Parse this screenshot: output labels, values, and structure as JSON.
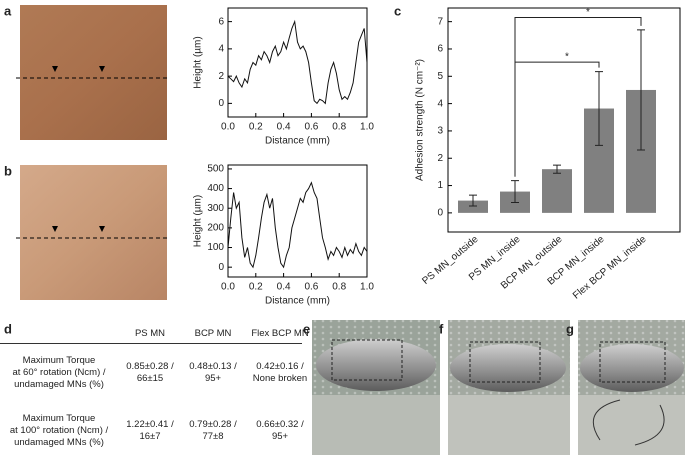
{
  "panels": [
    "a",
    "b",
    "c",
    "d",
    "e",
    "f",
    "g"
  ],
  "chart_data": [
    {
      "type": "line",
      "xlabel": "Distance (mm)",
      "ylabel": "Height (µm)",
      "color": "#111",
      "x": [
        0,
        0.02,
        0.04,
        0.06,
        0.08,
        0.1,
        0.12,
        0.14,
        0.16,
        0.18,
        0.2,
        0.22,
        0.24,
        0.26,
        0.28,
        0.3,
        0.32,
        0.34,
        0.36,
        0.38,
        0.4,
        0.42,
        0.44,
        0.46,
        0.48,
        0.5,
        0.52,
        0.54,
        0.56,
        0.58,
        0.6,
        0.62,
        0.64,
        0.66,
        0.68,
        0.7,
        0.72,
        0.74,
        0.76,
        0.78,
        0.8,
        0.82,
        0.84,
        0.86,
        0.88,
        0.9,
        0.92,
        0.94,
        0.96,
        0.98,
        1
      ],
      "values": [
        2.0,
        1.8,
        1.6,
        2.0,
        1.5,
        1.2,
        1.8,
        1.5,
        2.5,
        3.0,
        2.8,
        3.5,
        3.2,
        3.8,
        3.5,
        3.0,
        3.8,
        4.2,
        3.5,
        3.8,
        4.5,
        4.0,
        4.8,
        5.5,
        6.0,
        4.5,
        4.0,
        4.2,
        3.8,
        3.0,
        1.5,
        0.2,
        0.0,
        0.3,
        0.2,
        0.0,
        1.5,
        2.5,
        3.0,
        2.2,
        1.0,
        0.3,
        0.5,
        0.3,
        0.8,
        1.5,
        3.0,
        4.5,
        5.0,
        5.5,
        3.0
      ],
      "xlim": [
        0,
        1
      ],
      "ylim": [
        -1,
        7
      ],
      "xticks": [
        {
          "value": 0,
          "label": "0.0"
        },
        {
          "value": 0.2,
          "label": "0.2"
        },
        {
          "value": 0.4,
          "label": "0.4"
        },
        {
          "value": 0.6,
          "label": "0.6"
        },
        {
          "value": 0.8,
          "label": "0.8"
        },
        {
          "value": 1,
          "label": "1.0"
        }
      ],
      "yticks": [
        0,
        2,
        4,
        6
      ]
    },
    {
      "type": "line",
      "xlabel": "Distance (mm)",
      "ylabel": "Height (µm)",
      "color": "#111",
      "x": [
        0,
        0.02,
        0.04,
        0.06,
        0.08,
        0.1,
        0.12,
        0.14,
        0.16,
        0.18,
        0.2,
        0.22,
        0.24,
        0.26,
        0.28,
        0.3,
        0.32,
        0.34,
        0.36,
        0.38,
        0.4,
        0.42,
        0.44,
        0.46,
        0.48,
        0.5,
        0.52,
        0.54,
        0.56,
        0.58,
        0.6,
        0.62,
        0.64,
        0.66,
        0.68,
        0.7,
        0.72,
        0.74,
        0.76,
        0.78,
        0.8,
        0.82,
        0.84,
        0.86,
        0.88,
        0.9,
        0.92,
        0.94,
        0.96,
        0.98,
        1
      ],
      "values": [
        100,
        250,
        380,
        300,
        330,
        150,
        50,
        100,
        20,
        0,
        60,
        150,
        250,
        330,
        370,
        300,
        350,
        200,
        100,
        20,
        0,
        60,
        100,
        200,
        250,
        300,
        350,
        330,
        380,
        400,
        430,
        380,
        350,
        250,
        150,
        100,
        40,
        80,
        60,
        100,
        80,
        50,
        100,
        60,
        90,
        70,
        120,
        80,
        60,
        100,
        80
      ],
      "xlim": [
        0,
        1
      ],
      "ylim": [
        -50,
        520
      ],
      "xticks": [
        {
          "value": 0,
          "label": "0.0"
        },
        {
          "value": 0.2,
          "label": "0.2"
        },
        {
          "value": 0.4,
          "label": "0.4"
        },
        {
          "value": 0.6,
          "label": "0.6"
        },
        {
          "value": 0.8,
          "label": "0.8"
        },
        {
          "value": 1,
          "label": "1.0"
        }
      ],
      "yticks": [
        0,
        100,
        200,
        300,
        400,
        500
      ]
    },
    {
      "type": "bar",
      "ylabel": "Adhesion strength (N cm⁻²)",
      "color": "#808080",
      "categories": [
        "PS MN_outside",
        "PS MN_inside",
        "BCP MN_outside",
        "BCP MN_inside",
        "Flex BCP MN_inside"
      ],
      "values": [
        0.45,
        0.78,
        1.6,
        3.82,
        4.5
      ],
      "errors": [
        0.2,
        0.4,
        0.15,
        1.35,
        2.2
      ],
      "ylim": [
        -0.7,
        7.5
      ],
      "yticks": [
        0,
        1,
        2,
        3,
        4,
        5,
        6,
        7
      ],
      "annotations": [
        "*",
        "*"
      ]
    }
  ],
  "table": {
    "header": [
      "PS MN",
      "BCP MN",
      "Flex BCP MN"
    ],
    "rows": [
      {
        "label": [
          "Maximum Torque",
          "at 60° rotation (Ncm) /",
          "undamaged MNs (%)"
        ],
        "cells": [
          [
            "0.85±0.28 /",
            "66±15"
          ],
          [
            "0.48±0.13 /",
            "95+"
          ],
          [
            "0.42±0.16 /",
            "None broken"
          ]
        ]
      },
      {
        "label": [
          "Maximum Torque",
          "at 100° rotation (Ncm) /",
          "undamaged MNs (%)"
        ],
        "cells": [
          [
            "1.22±0.41 /",
            "16±7"
          ],
          [
            "0.79±0.28 /",
            "77±8"
          ],
          [
            "0.66±0.32 /",
            "95+"
          ]
        ]
      }
    ]
  }
}
